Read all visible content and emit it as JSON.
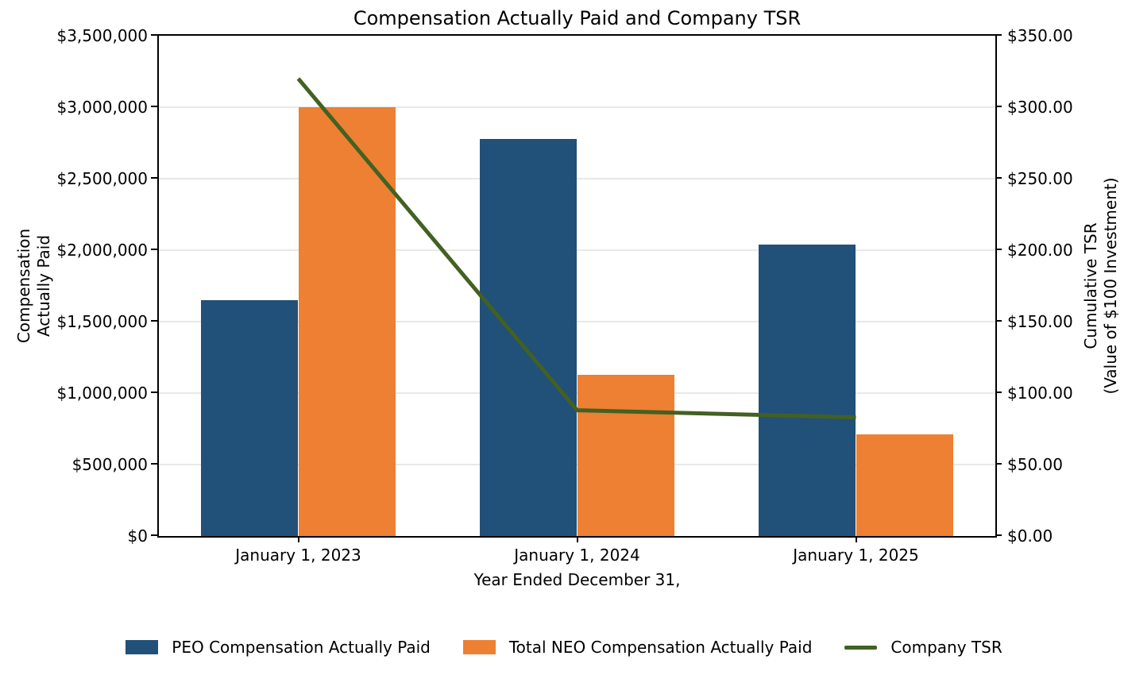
{
  "chart_data": {
    "type": "bar",
    "subtype": "grouped-bars-with-line-overlay",
    "title": "Compensation Actually Paid and Company TSR",
    "xlabel": "Year Ended December 31,",
    "ylabel_left_line1": "Compensation",
    "ylabel_left_line2": "Actually Paid",
    "ylabel_right_line1": "Cumulative TSR",
    "ylabel_right_line2": "(Value of $100 Investment)",
    "categories": [
      "January 1, 2023",
      "January 1, 2024",
      "January 1, 2025"
    ],
    "series": [
      {
        "type": "bar",
        "name": "PEO Compensation Actually Paid",
        "axis": "left",
        "color": "#215078",
        "values": [
          1650000,
          2780000,
          2040000
        ]
      },
      {
        "type": "bar",
        "name": "Total NEO Compensation Actually Paid",
        "axis": "left",
        "color": "#ed8032",
        "values": [
          3000000,
          1130000,
          710000
        ]
      },
      {
        "type": "line",
        "name": "Company TSR",
        "axis": "right",
        "color": "#426122",
        "values": [
          320,
          88,
          83
        ]
      }
    ],
    "left_axis": {
      "min": 0,
      "max": 3500000,
      "tick_labels": [
        "$0",
        "$500,000",
        "$1,000,000",
        "$1,500,000",
        "$2,000,000",
        "$2,500,000",
        "$3,000,000",
        "$3,500,000"
      ]
    },
    "right_axis": {
      "min": 0,
      "max": 350,
      "tick_labels": [
        "$0.00",
        "$50.00",
        "$100.00",
        "$150.00",
        "$200.00",
        "$250.00",
        "$300.00",
        "$350.00"
      ]
    },
    "grid": "horizontal",
    "legend_position": "bottom",
    "colors": {
      "grid": "#e8e8e8",
      "spine": "#000000",
      "background": "#ffffff"
    }
  }
}
